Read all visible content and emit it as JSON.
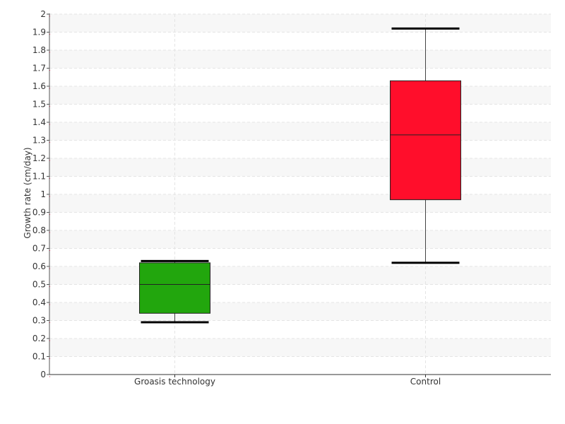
{
  "chart_data": {
    "type": "boxplot",
    "title": "",
    "xlabel": "",
    "ylabel": "Growth rate (cm/day)",
    "ylim": [
      0,
      2
    ],
    "y_ticks": [
      "0",
      "0.1",
      "0.2",
      "0.3",
      "0.4",
      "0.5",
      "0.6",
      "0.7",
      "0.8",
      "0.9",
      "1",
      "1.1",
      "1.2",
      "1.3",
      "1.4",
      "1.5",
      "1.6",
      "1.7",
      "1.8",
      "1.9",
      "2"
    ],
    "categories": [
      "Groasis technology",
      "Control"
    ],
    "boxes": [
      {
        "category": "Groasis technology",
        "min": 0.29,
        "q1": 0.34,
        "median": 0.5,
        "q3": 0.62,
        "max": 0.63,
        "color": "#22a60d"
      },
      {
        "category": "Control",
        "min": 0.62,
        "q1": 0.97,
        "median": 1.33,
        "q3": 1.63,
        "max": 1.92,
        "color": "#ff0e2b"
      }
    ],
    "grid": true,
    "legend": "none"
  }
}
